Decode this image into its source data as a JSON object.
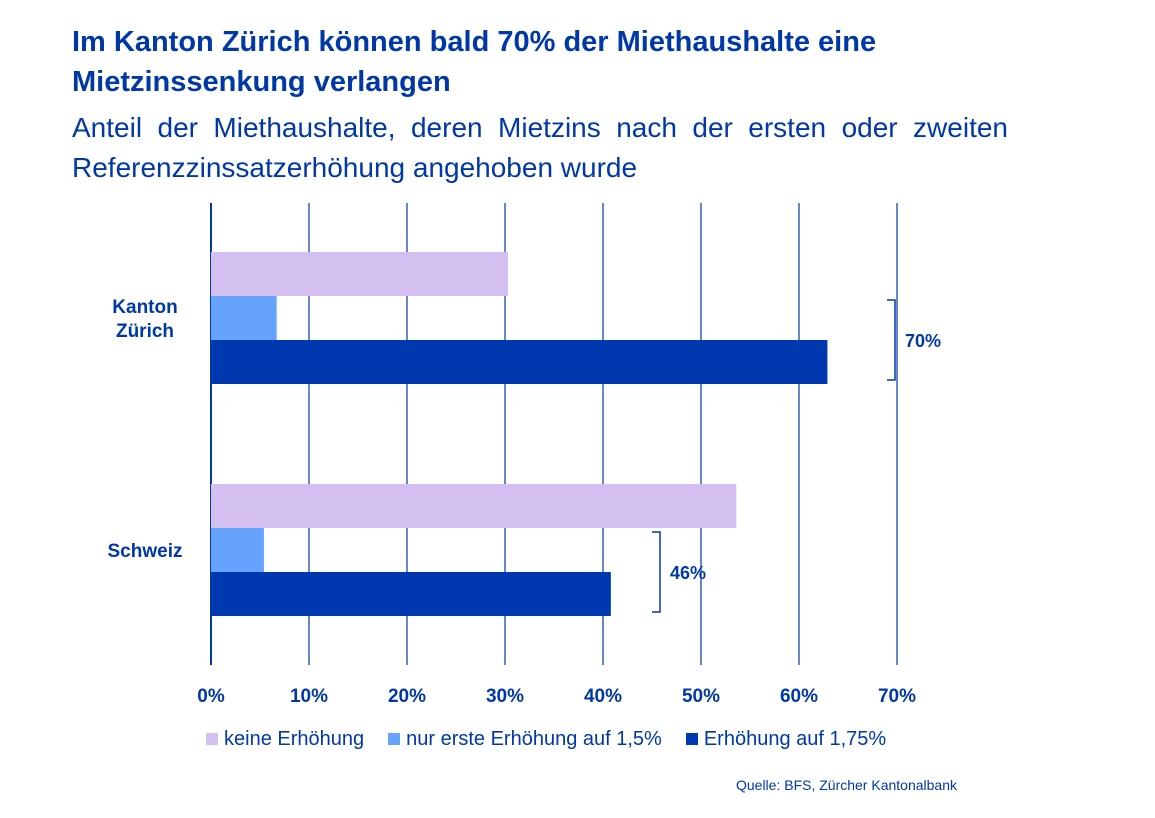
{
  "title": "Im Kanton Zürich können bald 70% der Miethaushalte eine Mietzinssenkung verlangen",
  "subtitle": "Anteil der Miethaushalte, deren Mietzins nach der ersten oder zweiten Referenzzinssatzerhöhung angehoben wurde",
  "source": "Quelle: BFS, Zürcher Kantonalbank",
  "chart_data": {
    "type": "bar",
    "orientation": "horizontal",
    "title": "",
    "xlabel": "",
    "ylabel": "",
    "xlim": [
      0,
      70
    ],
    "x_ticks": [
      0,
      10,
      20,
      30,
      40,
      50,
      60,
      70
    ],
    "x_tick_labels": [
      "0%",
      "10%",
      "20%",
      "30%",
      "40%",
      "50%",
      "60%",
      "70%"
    ],
    "grid": "vertical",
    "legend_position": "bottom",
    "categories": [
      "Kanton Zürich",
      "Schweiz"
    ],
    "category_lines": [
      [
        "Kanton",
        "Zürich"
      ],
      [
        "Schweiz"
      ]
    ],
    "series": [
      {
        "name": "keine Erhöhung",
        "color": "#d3bff0",
        "values": [
          30.3,
          53.6
        ]
      },
      {
        "name": "nur erste Erhöhung auf 1,5%",
        "color": "#66a3ff",
        "values": [
          6.7,
          5.4
        ]
      },
      {
        "name": "Erhöhung auf 1,75%",
        "color": "#0038b0",
        "values": [
          62.9,
          40.8
        ]
      }
    ],
    "annotations": [
      {
        "category": "Kanton Zürich",
        "label": "70%",
        "brackets_series": [
          "nur erste Erhöhung auf 1,5%",
          "Erhöhung auf 1,75%"
        ],
        "x": 70
      },
      {
        "category": "Schweiz",
        "label": "46%",
        "brackets_series": [
          "nur erste Erhöhung auf 1,5%",
          "Erhöhung auf 1,75%"
        ],
        "x": 46
      }
    ],
    "colors": {
      "text": "#0038a8",
      "grid": "#0038a8"
    }
  }
}
